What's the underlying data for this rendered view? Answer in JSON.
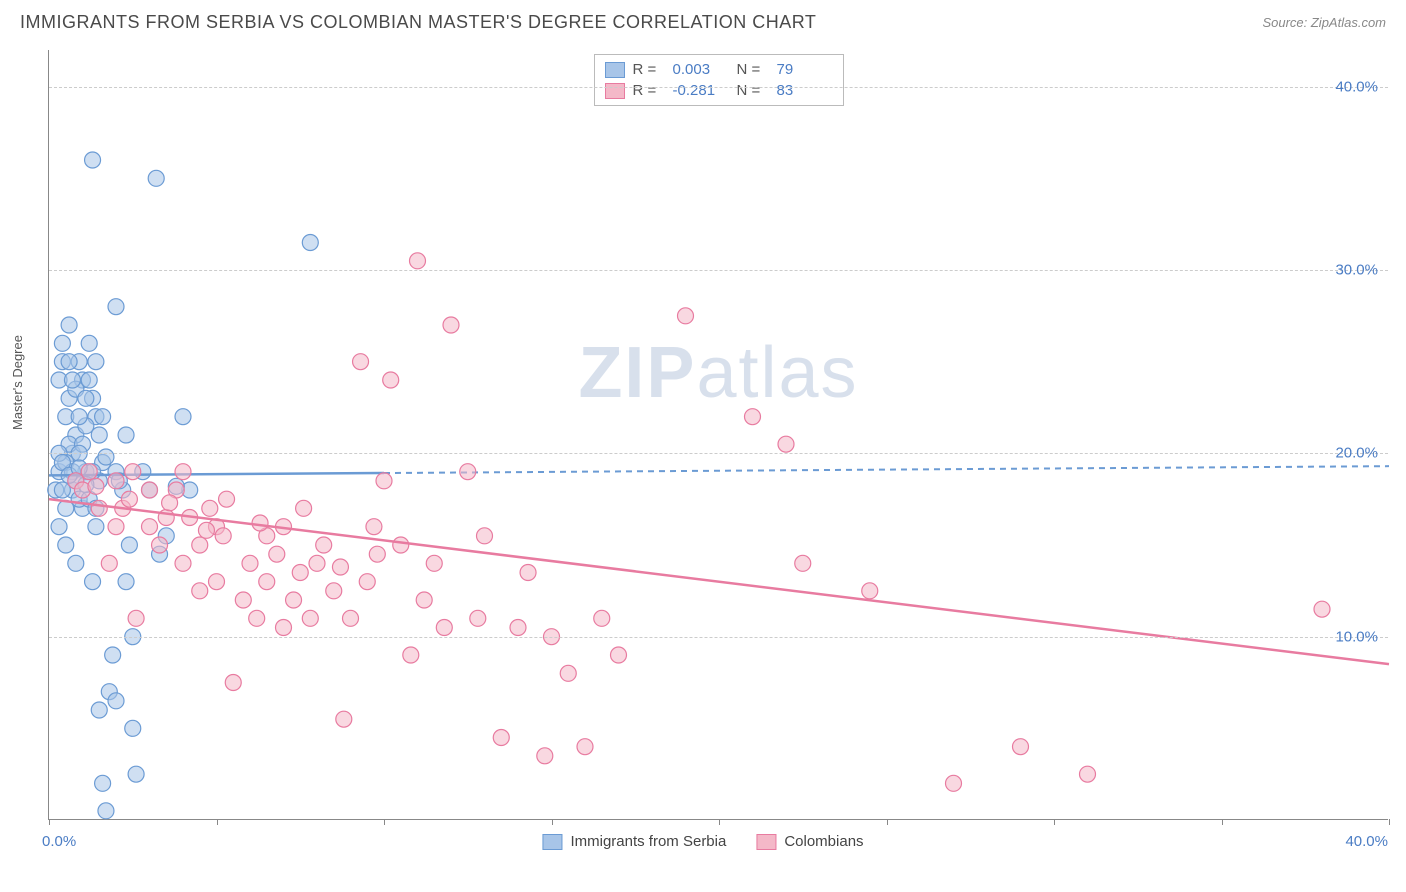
{
  "header": {
    "title": "IMMIGRANTS FROM SERBIA VS COLOMBIAN MASTER'S DEGREE CORRELATION CHART",
    "source": "Source: ZipAtlas.com"
  },
  "watermark": {
    "zip": "ZIP",
    "atlas": "atlas"
  },
  "ylabel": "Master's Degree",
  "chart": {
    "type": "scatter",
    "xlim": [
      0,
      40
    ],
    "ylim": [
      0,
      42
    ],
    "yticks": [
      10,
      20,
      30,
      40
    ],
    "ytick_labels": [
      "10.0%",
      "20.0%",
      "30.0%",
      "40.0%"
    ],
    "xtick_marks": [
      0,
      5,
      10,
      15,
      20,
      25,
      30,
      35,
      40
    ],
    "xtick_0_label": "0.0%",
    "xtick_max_label": "40.0%",
    "background_color": "#ffffff",
    "grid_color": "#cccccc"
  },
  "series": [
    {
      "name": "Immigrants from Serbia",
      "color_fill": "#a8c5e8",
      "color_stroke": "#6b9bd4",
      "marker_radius": 8,
      "fill_opacity": 0.55,
      "regression": {
        "y_at_x0": 18.8,
        "y_at_xmax": 19.3,
        "solid_until_x": 10
      },
      "R": "0.003",
      "N": "79",
      "points": [
        [
          0.2,
          18
        ],
        [
          0.3,
          19
        ],
        [
          0.3,
          24
        ],
        [
          0.4,
          25
        ],
        [
          0.4,
          26
        ],
        [
          0.5,
          15
        ],
        [
          0.5,
          22
        ],
        [
          0.6,
          23
        ],
        [
          0.6,
          27
        ],
        [
          0.7,
          18
        ],
        [
          0.7,
          20
        ],
        [
          0.8,
          14
        ],
        [
          0.8,
          21
        ],
        [
          0.9,
          25
        ],
        [
          1.0,
          17
        ],
        [
          1.0,
          24
        ],
        [
          1.1,
          19
        ],
        [
          1.2,
          26
        ],
        [
          1.3,
          36
        ],
        [
          1.3,
          13
        ],
        [
          1.4,
          22
        ],
        [
          1.5,
          18.5
        ],
        [
          1.5,
          6
        ],
        [
          1.6,
          2
        ],
        [
          1.7,
          0.5
        ],
        [
          1.8,
          7
        ],
        [
          1.9,
          9
        ],
        [
          2.0,
          6.5
        ],
        [
          2.0,
          28
        ],
        [
          2.2,
          18
        ],
        [
          2.3,
          13
        ],
        [
          2.4,
          15
        ],
        [
          2.5,
          10
        ],
        [
          2.5,
          5
        ],
        [
          2.6,
          2.5
        ],
        [
          3.0,
          18
        ],
        [
          3.2,
          35
        ],
        [
          3.3,
          14.5
        ],
        [
          3.5,
          15.5
        ],
        [
          4.0,
          22
        ],
        [
          4.2,
          18
        ],
        [
          7.8,
          31.5
        ],
        [
          0.5,
          19.5
        ],
        [
          0.6,
          20.5
        ],
        [
          0.8,
          23.5
        ],
        [
          0.9,
          17.5
        ],
        [
          1.1,
          21.5
        ],
        [
          1.3,
          23
        ],
        [
          1.4,
          16
        ],
        [
          1.6,
          19.5
        ],
        [
          0.3,
          20
        ],
        [
          0.4,
          18
        ],
        [
          0.7,
          19
        ],
        [
          0.9,
          22
        ],
        [
          1.0,
          20.5
        ],
        [
          1.2,
          24
        ],
        [
          0.5,
          17
        ],
        [
          0.6,
          25
        ],
        [
          0.8,
          18.5
        ],
        [
          1.1,
          23
        ],
        [
          1.3,
          19
        ],
        [
          1.5,
          21
        ],
        [
          0.4,
          19.5
        ],
        [
          0.7,
          24
        ],
        [
          0.9,
          20
        ],
        [
          1.2,
          17.5
        ],
        [
          1.4,
          25
        ],
        [
          1.6,
          22
        ],
        [
          2.0,
          19
        ],
        [
          2.3,
          21
        ],
        [
          0.3,
          16
        ],
        [
          0.6,
          18.8
        ],
        [
          0.9,
          19.2
        ],
        [
          1.1,
          18.3
        ],
        [
          1.4,
          17
        ],
        [
          1.7,
          19.8
        ],
        [
          2.1,
          18.5
        ],
        [
          2.8,
          19
        ],
        [
          3.8,
          18.2
        ]
      ]
    },
    {
      "name": "Colombians",
      "color_fill": "#f4b8c8",
      "color_stroke": "#e87ba0",
      "marker_radius": 8,
      "fill_opacity": 0.55,
      "regression": {
        "y_at_x0": 17.5,
        "y_at_xmax": 8.5,
        "solid_until_x": 40
      },
      "R": "-0.281",
      "N": "83",
      "points": [
        [
          0.8,
          18.5
        ],
        [
          1.0,
          18
        ],
        [
          1.2,
          19
        ],
        [
          1.5,
          17
        ],
        [
          1.8,
          14
        ],
        [
          2.0,
          18.5
        ],
        [
          2.0,
          16
        ],
        [
          2.2,
          17
        ],
        [
          2.5,
          19
        ],
        [
          2.6,
          11
        ],
        [
          3.0,
          16
        ],
        [
          3.0,
          18
        ],
        [
          3.3,
          15
        ],
        [
          3.5,
          16.5
        ],
        [
          3.8,
          18
        ],
        [
          4.0,
          19
        ],
        [
          4.0,
          14
        ],
        [
          4.2,
          16.5
        ],
        [
          4.5,
          15
        ],
        [
          4.5,
          12.5
        ],
        [
          4.8,
          17
        ],
        [
          5.0,
          13
        ],
        [
          5.0,
          16
        ],
        [
          5.2,
          15.5
        ],
        [
          5.5,
          7.5
        ],
        [
          5.8,
          12
        ],
        [
          6.0,
          14
        ],
        [
          6.2,
          11
        ],
        [
          6.5,
          15.5
        ],
        [
          6.5,
          13
        ],
        [
          6.8,
          14.5
        ],
        [
          7.0,
          16
        ],
        [
          7.0,
          10.5
        ],
        [
          7.3,
          12
        ],
        [
          7.5,
          13.5
        ],
        [
          7.8,
          11
        ],
        [
          8.0,
          14
        ],
        [
          8.2,
          15
        ],
        [
          8.5,
          12.5
        ],
        [
          8.8,
          5.5
        ],
        [
          9.0,
          11
        ],
        [
          9.3,
          25
        ],
        [
          9.5,
          13
        ],
        [
          9.8,
          14.5
        ],
        [
          10.0,
          18.5
        ],
        [
          10.2,
          24
        ],
        [
          10.5,
          15
        ],
        [
          10.8,
          9
        ],
        [
          11.0,
          30.5
        ],
        [
          11.2,
          12
        ],
        [
          11.5,
          14
        ],
        [
          11.8,
          10.5
        ],
        [
          12.0,
          27
        ],
        [
          12.5,
          19
        ],
        [
          12.8,
          11
        ],
        [
          13.0,
          15.5
        ],
        [
          13.5,
          4.5
        ],
        [
          14.0,
          10.5
        ],
        [
          14.3,
          13.5
        ],
        [
          14.8,
          3.5
        ],
        [
          15.0,
          10
        ],
        [
          15.5,
          8
        ],
        [
          16.0,
          4
        ],
        [
          16.5,
          11
        ],
        [
          17.0,
          9
        ],
        [
          19.0,
          27.5
        ],
        [
          21.0,
          22
        ],
        [
          22.0,
          20.5
        ],
        [
          22.5,
          14
        ],
        [
          24.5,
          12.5
        ],
        [
          27.0,
          2
        ],
        [
          29.0,
          4
        ],
        [
          31.0,
          2.5
        ],
        [
          38.0,
          11.5
        ],
        [
          1.4,
          18.2
        ],
        [
          2.4,
          17.5
        ],
        [
          3.6,
          17.3
        ],
        [
          4.7,
          15.8
        ],
        [
          5.3,
          17.5
        ],
        [
          6.3,
          16.2
        ],
        [
          7.6,
          17
        ],
        [
          8.7,
          13.8
        ],
        [
          9.7,
          16
        ]
      ]
    }
  ],
  "legend_top": {
    "R_label": "R =",
    "N_label": "N ="
  },
  "legend_bottom": {
    "items": [
      "Immigrants from Serbia",
      "Colombians"
    ]
  }
}
